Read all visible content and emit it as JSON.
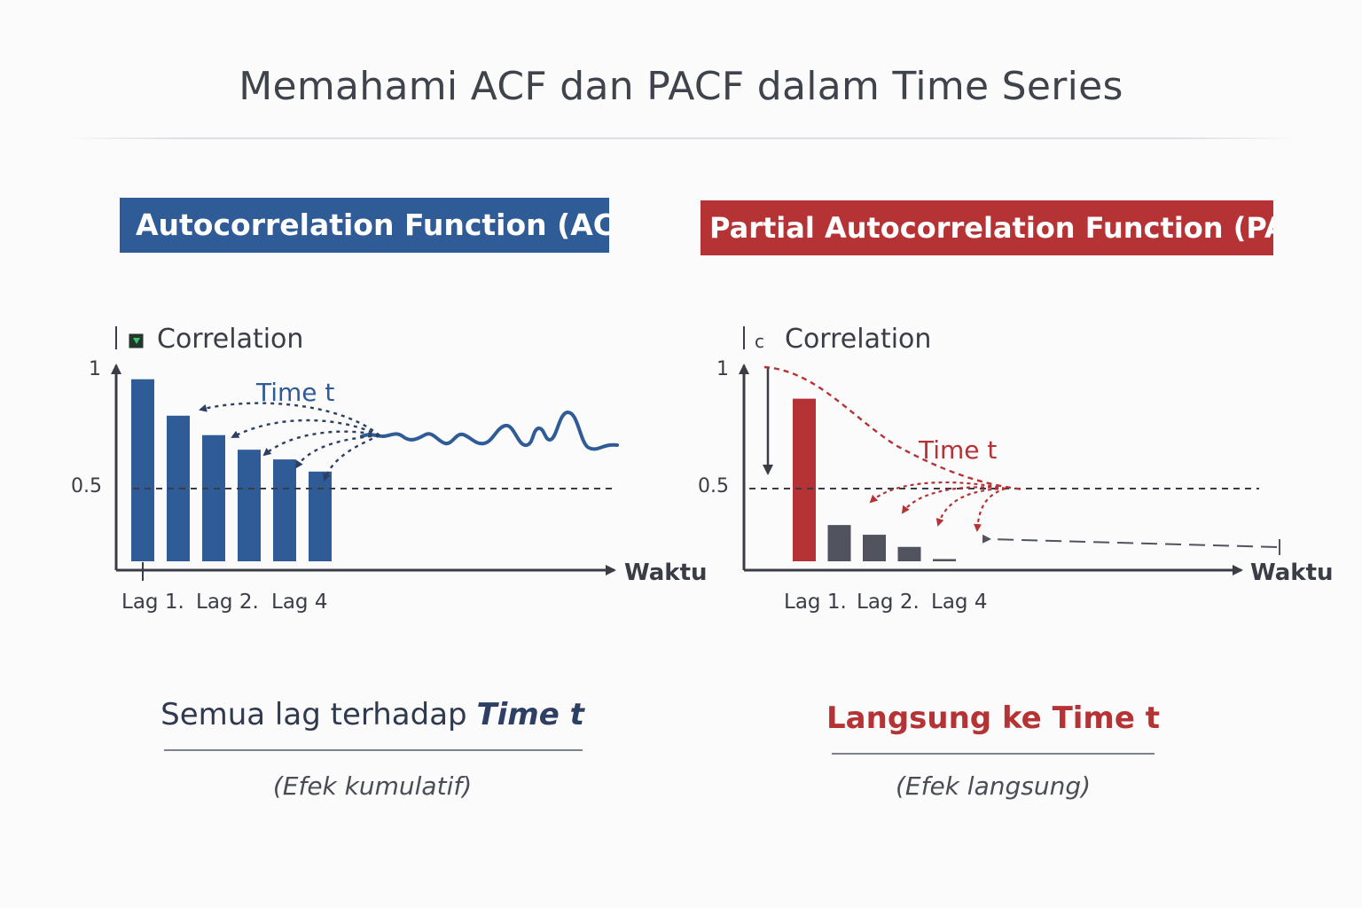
{
  "title": "Memahami ACF dan PACF dalam Time Series",
  "colors": {
    "acf_blue": "#2f5b96",
    "pacf_red": "#b53235",
    "pacf_gray": "#51545e",
    "axis": "#3a3d45",
    "reference_line": "#3a3d45"
  },
  "acf": {
    "badge": "Autocorrelation Function (ACF)",
    "caption_text": "Semua lag terhadap ",
    "caption_emphasis": "Time t",
    "note": "(Efek kumulatif)"
  },
  "pacf": {
    "badge": "Partial Autocorrelation Function (PACF)",
    "caption": "Langsung ke Time t",
    "note": "(Efek langsung)"
  },
  "chart_data": [
    {
      "type": "bar",
      "title": "Autocorrelation Function (ACF)",
      "ylabel": "Correlation",
      "xlabel": "Waktu",
      "y_ticks": [
        "1",
        "0.5"
      ],
      "x_tick_labels": [
        "Lag 1.",
        "Lag 2.",
        "Lag 4"
      ],
      "values": [
        0.95,
        0.8,
        0.72,
        0.66,
        0.62,
        0.57
      ],
      "ylim": [
        0.1,
        1.05
      ],
      "reference_line": 0.5,
      "annotation": "Time t",
      "color": "#2f5b96"
    },
    {
      "type": "bar",
      "title": "Partial Autocorrelation Function (PACF)",
      "ylabel": "Correlation",
      "y_axis_marker": "c",
      "xlabel": "Waktu",
      "y_ticks": [
        "1",
        "0.5"
      ],
      "x_tick_labels": [
        "Lag 1.",
        "Lag 2.",
        "Lag 4"
      ],
      "values": [
        0.87,
        0.35,
        0.31,
        0.26,
        0.21,
        0.17
      ],
      "ylim": [
        0.1,
        1.05
      ],
      "reference_line": 0.5,
      "annotation": "Time t",
      "colors": [
        "#b53235",
        "#51545e",
        "#51545e",
        "#51545e",
        "#51545e",
        "#51545e"
      ]
    }
  ]
}
